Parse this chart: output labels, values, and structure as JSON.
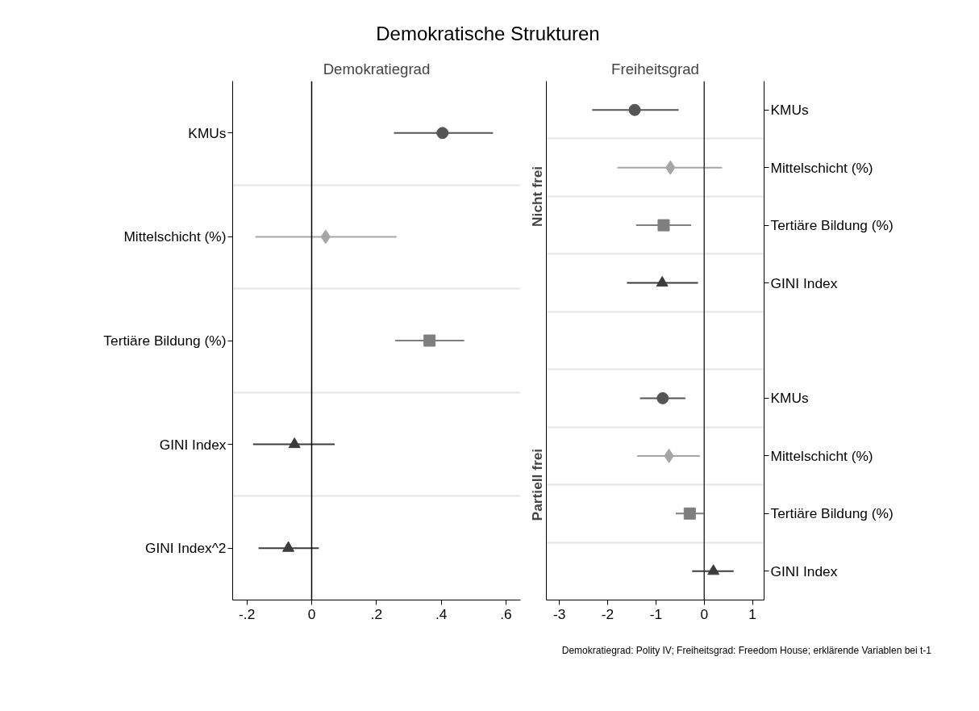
{
  "chart_data": [
    {
      "type": "scatter",
      "orientation": "horizontal",
      "title": "Demokratische Strukturen",
      "subtitle": "Demokratiegrad",
      "categories": [
        "KMUs",
        "Mittelschicht (%)",
        "Tertiäre Bildung (%)",
        "GINI Index",
        "GINI Index^2"
      ],
      "xlim": [
        -0.244,
        0.645
      ],
      "xticks": [
        {
          "value": -0.2,
          "label": "-.2"
        },
        0,
        {
          "value": 0.2,
          "label": ".2"
        },
        {
          "value": 0.4,
          "label": ".4"
        },
        {
          "value": 0.6,
          "label": ".6"
        }
      ],
      "grid": "y",
      "ref_lines": [
        {
          "axis": "x",
          "value": 0,
          "color": "#000000"
        }
      ],
      "series": [
        {
          "color": "#555555",
          "marker": "circle",
          "values": [
            0.404,
            null,
            null,
            null,
            null
          ],
          "errors": [
            [
              0.254,
              0.56
            ],
            null,
            null,
            null,
            null
          ]
        },
        {
          "color": "#a6a6a6",
          "marker": "diamond",
          "values": [
            null,
            0.043,
            null,
            null,
            null
          ],
          "errors": [
            null,
            [
              -0.174,
              0.262
            ],
            null,
            null,
            null
          ]
        },
        {
          "color": "#7f7f7f",
          "marker": "square",
          "values": [
            null,
            null,
            0.364,
            null,
            null
          ],
          "errors": [
            null,
            null,
            [
              0.258,
              0.471
            ],
            null,
            null
          ]
        },
        {
          "color": "#3c3c3c",
          "marker": "triangle",
          "values": [
            null,
            null,
            null,
            -0.053,
            -0.072
          ],
          "errors": [
            null,
            null,
            null,
            [
              -0.181,
              0.071
            ],
            [
              -0.164,
              0.022
            ]
          ]
        }
      ]
    },
    {
      "type": "scatter",
      "orientation": "horizontal",
      "subtitle": "Freiheitsgrad",
      "categories": [
        "KMUs",
        "Mittelschicht (%)",
        "Tertiäre Bildung (%)",
        "GINI Index",
        null,
        "KMUs",
        "Mittelschicht (%)",
        "Tertiäre Bildung (%)",
        "GINI Index"
      ],
      "xlim": [
        -3.27,
        1.24
      ],
      "xticks": [
        -3,
        -2,
        -1,
        0,
        1
      ],
      "grid": "y",
      "ref_lines": [
        {
          "axis": "x",
          "value": 0,
          "color": "#333333"
        }
      ],
      "annotations": [
        "Nicht frei",
        "Partiell frei",
        "Demokratiegrad: Polity IV; Freiheitsgrad: Freedom House; erklärende Variablen bei t-1"
      ],
      "series": [
        {
          "color": "#555555",
          "marker": "circle",
          "values": [
            -1.44,
            null,
            null,
            null,
            null,
            -0.86,
            null,
            null,
            null
          ],
          "errors": [
            [
              -2.32,
              -0.53
            ],
            null,
            null,
            null,
            null,
            [
              -1.33,
              -0.39
            ],
            null,
            null,
            null
          ]
        },
        {
          "color": "#a6a6a6",
          "marker": "diamond",
          "values": [
            null,
            -0.7,
            null,
            null,
            null,
            null,
            -0.73,
            null,
            null
          ],
          "errors": [
            null,
            [
              -1.8,
              0.37
            ],
            null,
            null,
            null,
            null,
            [
              -1.39,
              -0.09
            ],
            null,
            null
          ]
        },
        {
          "color": "#7f7f7f",
          "marker": "square",
          "values": [
            null,
            null,
            -0.84,
            null,
            null,
            null,
            null,
            -0.3,
            null
          ],
          "errors": [
            null,
            null,
            [
              -1.41,
              -0.27
            ],
            null,
            null,
            null,
            null,
            [
              -0.59,
              -0.01
            ],
            null
          ]
        },
        {
          "color": "#3c3c3c",
          "marker": "triangle",
          "values": [
            null,
            null,
            null,
            -0.87,
            null,
            null,
            null,
            null,
            0.19
          ],
          "errors": [
            null,
            null,
            null,
            [
              -1.6,
              -0.13
            ],
            null,
            null,
            null,
            null,
            [
              -0.25,
              0.61
            ]
          ]
        }
      ]
    }
  ]
}
